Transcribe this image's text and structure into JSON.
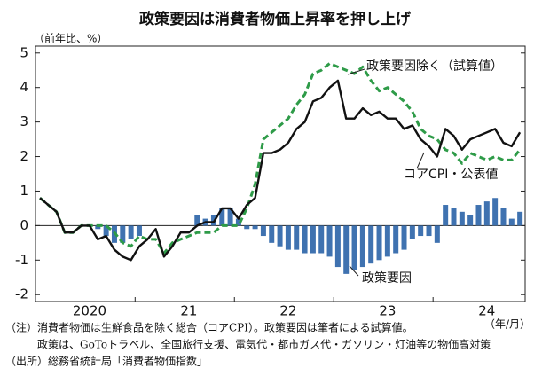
{
  "chart_data": {
    "type": "combo",
    "title": "政策要因は消費者物価上昇率を押し上げ",
    "y_label": "（前年比、%）",
    "x_label": "（年/月）",
    "notes": [
      "（注）消費者物価は生鮮食品を除く総合（コアCPI）。政策要因は筆者による試算値。",
      "政策は、GoToトラベル、全国旅行支援、電気代・都市ガス代・ガソリン・灯油等の物価高対策",
      "（出所）総務省統計局「消費者物価指数」"
    ],
    "categories": [
      null,
      null,
      null,
      null,
      null,
      null,
      "2020",
      null,
      null,
      null,
      null,
      null,
      null,
      null,
      null,
      null,
      null,
      null,
      "21",
      null,
      null,
      null,
      null,
      null,
      null,
      null,
      null,
      null,
      null,
      null,
      "22",
      null,
      null,
      null,
      null,
      null,
      null,
      null,
      null,
      null,
      null,
      null,
      "23",
      null,
      null,
      null,
      null,
      null,
      null,
      null,
      null,
      null,
      null,
      null,
      "24",
      null,
      null,
      null,
      null
    ],
    "ylim": [
      -2.2,
      5.2
    ],
    "yticks": [
      -2,
      -1,
      0,
      1,
      2,
      3,
      4,
      5
    ],
    "zero_line": true,
    "series": [
      {
        "name": "政策要因",
        "type": "bar",
        "color": "#3f72b0",
        "values": [
          null,
          null,
          null,
          null,
          null,
          null,
          null,
          -0.1,
          -0.3,
          -0.5,
          -0.5,
          -0.4,
          -0.3,
          null,
          null,
          null,
          null,
          null,
          null,
          0.3,
          0.2,
          0.3,
          0.5,
          0.5,
          0.2,
          -0.1,
          -0.1,
          -0.3,
          -0.5,
          -0.6,
          -0.7,
          -0.7,
          -0.8,
          -0.8,
          -0.8,
          -0.9,
          -1.2,
          -1.4,
          -1.3,
          -1.2,
          -1.1,
          -1.0,
          -0.9,
          -0.8,
          -0.7,
          -0.4,
          -0.3,
          -0.3,
          -0.5,
          0.6,
          0.5,
          0.4,
          0.3,
          0.6,
          0.7,
          0.8,
          0.5,
          0.2,
          0.4
        ]
      },
      {
        "name": "政策要因除く（試算値）",
        "type": "line",
        "style": "dashed",
        "color": "#2e9b48",
        "values": [
          0.8,
          0.6,
          0.4,
          -0.2,
          -0.2,
          0.0,
          0.0,
          0.0,
          0.0,
          -0.2,
          -0.5,
          -0.6,
          -0.3,
          -0.4,
          -0.4,
          -0.8,
          -0.5,
          -0.4,
          -0.3,
          -0.2,
          -0.2,
          -0.2,
          0.0,
          0.0,
          0.0,
          0.5,
          1.2,
          2.5,
          2.7,
          2.9,
          3.1,
          3.5,
          3.8,
          4.4,
          4.5,
          4.7,
          4.6,
          4.5,
          4.4,
          4.6,
          4.2,
          3.9,
          4.0,
          3.8,
          3.6,
          3.3,
          2.8,
          2.6,
          2.5,
          2.2,
          2.1,
          1.8,
          2.1,
          2.0,
          1.9,
          2.0,
          1.9,
          1.9,
          2.2
        ]
      },
      {
        "name": "コアCPI・公表値",
        "type": "line",
        "style": "solid",
        "color": "#111111",
        "values": [
          0.8,
          0.6,
          0.4,
          -0.2,
          -0.2,
          0.0,
          0.0,
          -0.4,
          -0.3,
          -0.7,
          -0.9,
          -1.0,
          -0.6,
          -0.4,
          -0.1,
          -0.9,
          -0.6,
          -0.2,
          -0.2,
          0.0,
          0.1,
          0.1,
          0.5,
          0.5,
          0.2,
          0.6,
          0.8,
          2.1,
          2.1,
          2.2,
          2.4,
          2.8,
          3.0,
          3.6,
          3.7,
          4.0,
          4.2,
          3.1,
          3.1,
          3.4,
          3.2,
          3.3,
          3.1,
          3.1,
          2.8,
          2.9,
          2.5,
          2.3,
          2.0,
          2.8,
          2.6,
          2.2,
          2.5,
          2.6,
          2.7,
          2.8,
          2.4,
          2.3,
          2.7
        ]
      }
    ]
  }
}
